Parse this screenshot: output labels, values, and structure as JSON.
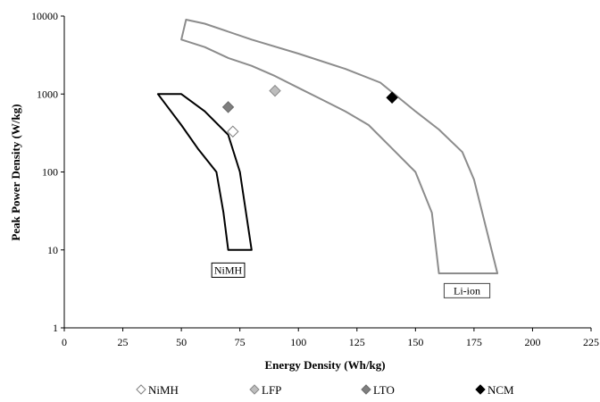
{
  "chart_data": {
    "type": "scatter",
    "title": "",
    "xlabel": "Energy Density (Wh/kg)",
    "ylabel": "Peak Power Density (W/kg)",
    "xlim": [
      0,
      225
    ],
    "ylim": [
      1,
      10000
    ],
    "y_scale": "log",
    "x_ticks": [
      0,
      25,
      50,
      75,
      100,
      125,
      150,
      175,
      200,
      225
    ],
    "y_ticks": [
      1,
      10,
      100,
      1000,
      10000
    ],
    "y_tick_labels": [
      "1",
      "10",
      "100",
      "1000",
      "10000"
    ],
    "grid": false,
    "legend_position": "bottom",
    "series": [
      {
        "name": "NiMH",
        "marker": "diamond-open",
        "color": "#ffffff",
        "stroke": "#808080",
        "points": [
          [
            72,
            330
          ]
        ]
      },
      {
        "name": "LFP",
        "marker": "diamond-filled",
        "color": "#bdbdbd",
        "stroke": "#8a8a8a",
        "points": [
          [
            90,
            1100
          ]
        ]
      },
      {
        "name": "LTO",
        "marker": "diamond-filled",
        "color": "#7f7f7f",
        "stroke": "#6a6a6a",
        "points": [
          [
            70,
            680
          ]
        ]
      },
      {
        "name": "NCM",
        "marker": "diamond-filled",
        "color": "#000000",
        "stroke": "#000000",
        "points": [
          [
            140,
            900
          ]
        ]
      }
    ],
    "regions": [
      {
        "label": "NiMH",
        "stroke": "#000000",
        "polygon": [
          [
            40,
            1000
          ],
          [
            50,
            1000
          ],
          [
            60,
            600
          ],
          [
            70,
            300
          ],
          [
            75,
            100
          ],
          [
            80,
            10
          ],
          [
            70,
            10
          ],
          [
            68,
            30
          ],
          [
            65,
            100
          ],
          [
            57,
            200
          ],
          [
            50,
            400
          ]
        ],
        "label_at": [
          70,
          5.5
        ]
      },
      {
        "label": "Li-ion",
        "stroke": "#8c8c8c",
        "polygon": [
          [
            52,
            9000
          ],
          [
            60,
            8000
          ],
          [
            80,
            5000
          ],
          [
            100,
            3300
          ],
          [
            120,
            2100
          ],
          [
            135,
            1400
          ],
          [
            150,
            600
          ],
          [
            160,
            350
          ],
          [
            170,
            180
          ],
          [
            175,
            80
          ],
          [
            180,
            20
          ],
          [
            185,
            5
          ],
          [
            160,
            5
          ],
          [
            157,
            30
          ],
          [
            150,
            100
          ],
          [
            140,
            200
          ],
          [
            130,
            400
          ],
          [
            120,
            600
          ],
          [
            110,
            850
          ],
          [
            100,
            1200
          ],
          [
            90,
            1700
          ],
          [
            80,
            2300
          ],
          [
            70,
            2900
          ],
          [
            60,
            4000
          ],
          [
            50,
            5000
          ]
        ],
        "label_at": [
          172,
          3.0
        ]
      }
    ]
  }
}
